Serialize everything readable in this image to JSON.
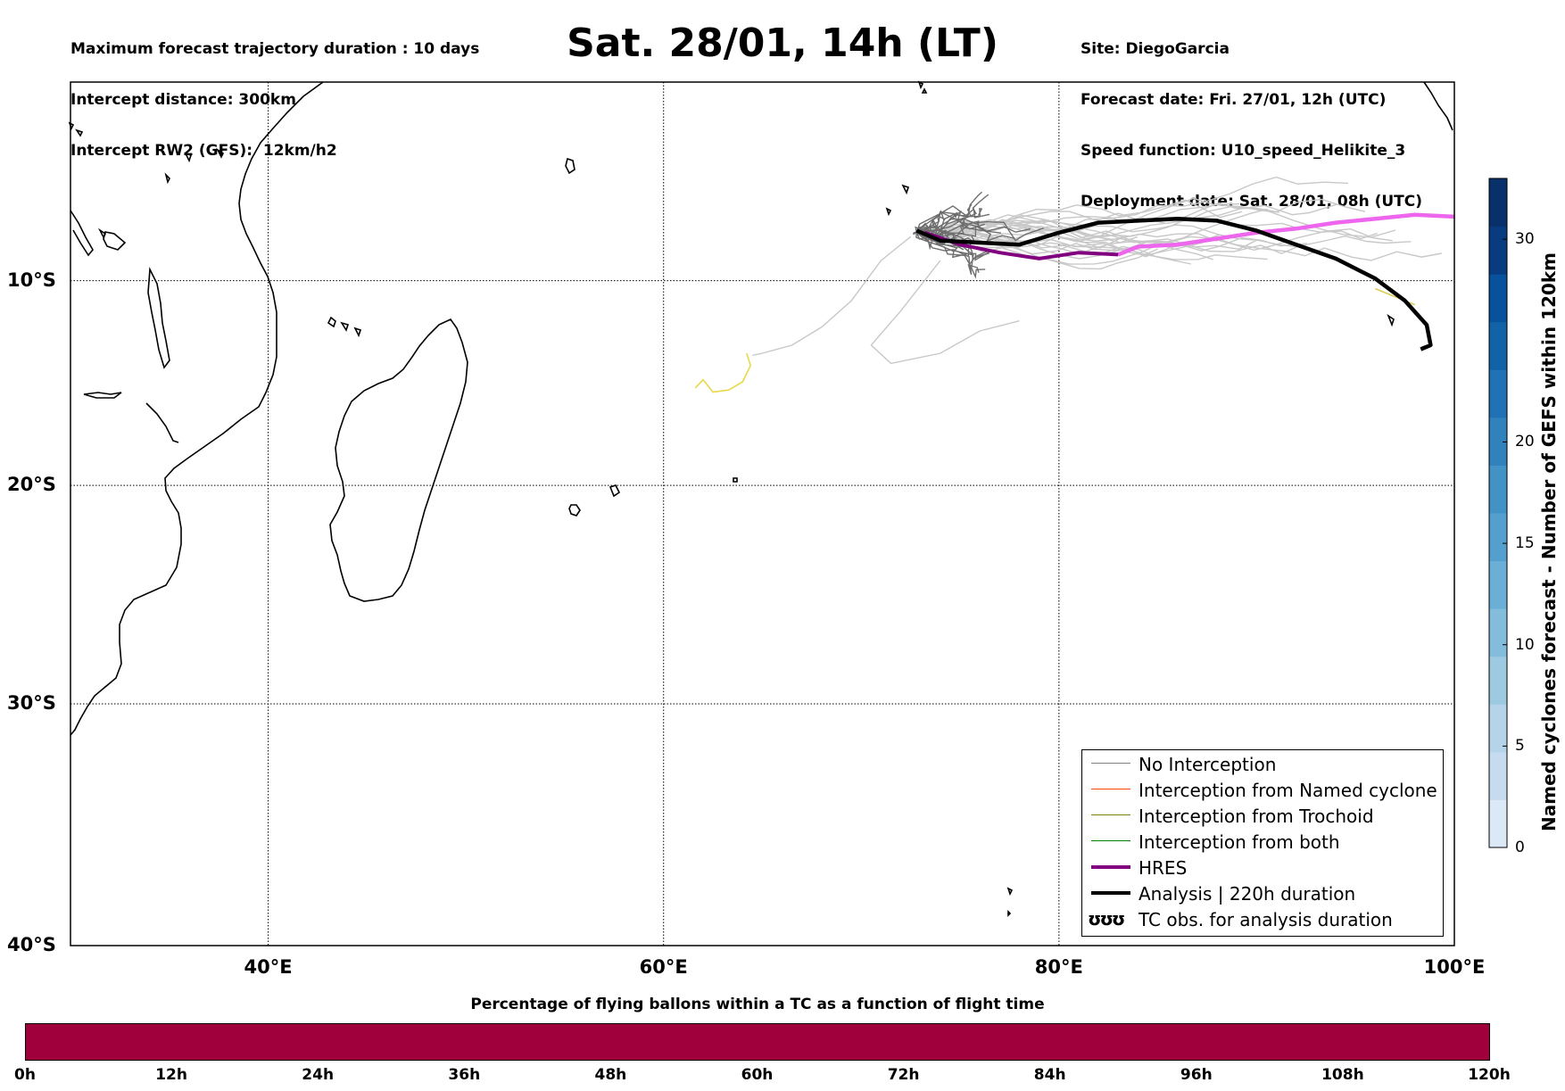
{
  "header": {
    "left_info": [
      "Maximum forecast trajectory duration : 10 days",
      "Intercept distance: 300km",
      "Intercept RW2 (GFS):  12km/h2"
    ],
    "title": "Sat. 28/01, 14h (LT)",
    "right_info": [
      "Site: DiegoGarcia",
      "Forecast date: Fri. 27/01, 12h (UTC)",
      "Speed function: U10_speed_Helikite_3",
      "Deployment date: Sat. 28/01, 08h (UTC)"
    ]
  },
  "map": {
    "lon_range": [
      30,
      100
    ],
    "lat_range": [
      -40,
      0
    ],
    "lon_labels": [
      {
        "lon": 40,
        "label": "40°E"
      },
      {
        "lon": 60,
        "label": "60°E"
      },
      {
        "lon": 80,
        "label": "80°E"
      },
      {
        "lon": 100,
        "label": "100°E"
      }
    ],
    "lat_labels": [
      {
        "lat": -10,
        "label": "10°S"
      },
      {
        "lat": -20,
        "label": "20°S"
      },
      {
        "lat": -30,
        "label": "30°S"
      },
      {
        "lat": -40,
        "label": "40°S"
      }
    ],
    "grid": true,
    "coastline_color": "#000000"
  },
  "legend": {
    "placement": "bottom-right",
    "items": [
      {
        "label": "No Interception",
        "color": "#808080",
        "width": 1.5
      },
      {
        "label": "Interception from Named cyclone",
        "color": "#ff4500",
        "width": 1.5
      },
      {
        "label": "Interception from Trochoid",
        "color": "#808000",
        "width": 1.5
      },
      {
        "label": "Interception from both",
        "color": "#008000",
        "width": 1.5
      },
      {
        "label": "HRES",
        "color": "#800080",
        "width": 4
      },
      {
        "label": "Analysis | 220h duration",
        "color": "#000000",
        "width": 4
      }
    ],
    "tc_symbol": "ʊʊʊ",
    "tc_label": "TC obs. for analysis duration"
  },
  "trajectories": {
    "hres": [
      [
        73.2,
        -7.6
      ],
      [
        75,
        -8.2
      ],
      [
        77,
        -8.6
      ],
      [
        79,
        -8.9
      ],
      [
        81,
        -8.6
      ],
      [
        83,
        -8.7
      ]
    ],
    "hres_extension": [
      [
        83,
        -8.7
      ],
      [
        84,
        -8.3
      ],
      [
        86,
        -8.2
      ],
      [
        88,
        -7.9
      ],
      [
        90,
        -7.6
      ],
      [
        92,
        -7.4
      ],
      [
        94,
        -7.1
      ],
      [
        96,
        -6.9
      ],
      [
        98,
        -6.7
      ],
      [
        100,
        -6.8
      ]
    ],
    "analysis": [
      [
        72.8,
        -7.5
      ],
      [
        74,
        -8.0
      ],
      [
        76,
        -8.1
      ],
      [
        78,
        -8.2
      ],
      [
        80,
        -7.6
      ],
      [
        82,
        -7.1
      ],
      [
        84,
        -7.0
      ],
      [
        86,
        -6.9
      ],
      [
        88,
        -7.0
      ],
      [
        90,
        -7.5
      ],
      [
        92,
        -8.2
      ],
      [
        94,
        -8.9
      ],
      [
        96,
        -9.9
      ],
      [
        97.5,
        -11.0
      ],
      [
        98.6,
        -12.2
      ],
      [
        98.8,
        -13.2
      ],
      [
        98.3,
        -13.4
      ]
    ],
    "interception_tc": [
      [
        61.6,
        -15.3
      ],
      [
        62,
        -14.9
      ],
      [
        62.5,
        -15.5
      ],
      [
        63.3,
        -15.4
      ],
      [
        64,
        -15
      ],
      [
        64.4,
        -14.2
      ],
      [
        64.2,
        -13.6
      ]
    ],
    "interception_tc_east": [
      [
        96,
        -10.4
      ],
      [
        97,
        -10.8
      ],
      [
        98,
        -11.2
      ]
    ]
  },
  "top_colorbar": {
    "label": "Named cyclones forecast - Number of GEFS within 120km",
    "min": 0,
    "max": 33,
    "ticks": [
      0,
      5,
      10,
      15,
      20,
      30
    ],
    "colors": [
      "#dbe9f6",
      "#c6dbef",
      "#b5d4e9",
      "#9ecae1",
      "#84bcdc",
      "#6baed6",
      "#549fcd",
      "#4292c6",
      "#3181bd",
      "#2171b5",
      "#1262a7",
      "#08519c",
      "#083b80",
      "#08306b"
    ]
  },
  "bottom_colorbar": {
    "title": "Percentage of flying ballons within a TC as a function of flight time",
    "color": "#a0003c",
    "ticks": [
      "0h",
      "12h",
      "24h",
      "36h",
      "48h",
      "60h",
      "72h",
      "84h",
      "96h",
      "108h",
      "120h"
    ]
  }
}
